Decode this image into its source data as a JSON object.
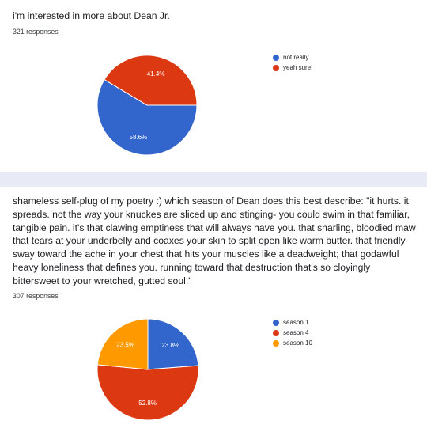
{
  "questions": [
    {
      "title": "i'm interested in more about Dean Jr.",
      "responses": "321 responses"
    },
    {
      "title": "shameless self-plug of my poetry :) which season of Dean does this best describe: \"it hurts. it spreads. not the way your knuckes are sliced up and stinging- you could swim in that familiar, tangible pain. it's that clawing emptiness that will always have you. that snarling, bloodied maw that tears at your underbelly and coaxes your skin to split open like warm butter. that friendly sway toward the ache in your chest that hits your muscles like a deadweight; that godawful heavy loneliness that defines you. running toward that destruction that's so cloyingly bittersweet to your wretched, gutted soul.\"",
      "responses": "307 responses"
    }
  ],
  "chart_data": [
    {
      "type": "pie",
      "categories": [
        "not really",
        "yeah sure!"
      ],
      "values": [
        58.6,
        41.4
      ],
      "labels": [
        "58.6%",
        "41.4%"
      ],
      "colors": [
        "#3366cc",
        "#dc3912"
      ],
      "legend": "right"
    },
    {
      "type": "pie",
      "categories": [
        "season 1",
        "season 4",
        "season 10"
      ],
      "values": [
        23.8,
        52.8,
        23.5
      ],
      "labels": [
        "23.8%",
        "52.8%",
        "23.5%"
      ],
      "colors": [
        "#3366cc",
        "#dc3912",
        "#ff9900"
      ],
      "legend": "right"
    }
  ]
}
